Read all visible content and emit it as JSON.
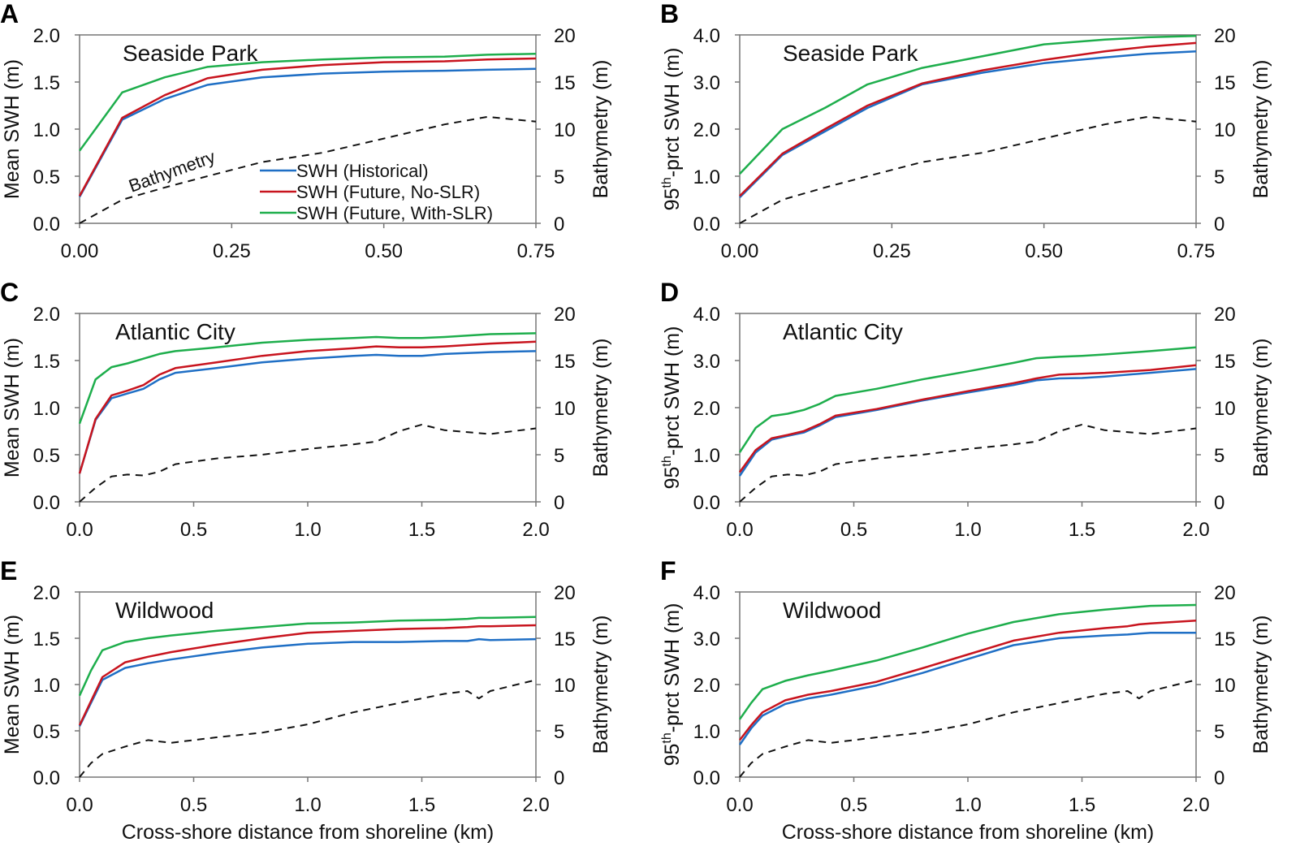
{
  "colors": {
    "historical": "#1f6fc5",
    "no_slr": "#c8141e",
    "with_slr": "#1eae4c",
    "bathymetry": "#111111"
  },
  "legend": [
    "SWH (Historical)",
    "SWH (Future, No-SLR)",
    "SWH (Future, With-SLR)"
  ],
  "bathymetry_annotation": "Bathymetry",
  "chart_data": [
    {
      "type": "line",
      "panel": "A",
      "title": "Seaside Park",
      "ylabel": {
        "main": "Mean SWH (m)"
      },
      "y2label": "Bathymetry (m)",
      "xlabel": "",
      "xlim": [
        0,
        0.75
      ],
      "ylim": [
        0,
        2.0
      ],
      "y2lim": [
        0,
        20
      ],
      "xticks": [
        "0.00",
        "0.25",
        "0.50",
        "0.75"
      ],
      "yticks": [
        "0.0",
        "0.5",
        "1.0",
        "1.5",
        "2.0"
      ],
      "y2ticks": [
        "0",
        "5",
        "10",
        "15",
        "20"
      ],
      "x": [
        0,
        0.07,
        0.14,
        0.21,
        0.3,
        0.4,
        0.5,
        0.6,
        0.67,
        0.75
      ],
      "series": [
        {
          "name": "SWH (Historical)",
          "key": "historical",
          "values": [
            0.28,
            1.1,
            1.32,
            1.47,
            1.55,
            1.59,
            1.61,
            1.62,
            1.63,
            1.64
          ]
        },
        {
          "name": "SWH (Future, No-SLR)",
          "key": "no_slr",
          "values": [
            0.29,
            1.12,
            1.36,
            1.54,
            1.63,
            1.68,
            1.71,
            1.72,
            1.74,
            1.75
          ]
        },
        {
          "name": "SWH (Future, With-SLR)",
          "key": "with_slr",
          "values": [
            0.77,
            1.39,
            1.55,
            1.66,
            1.71,
            1.74,
            1.76,
            1.77,
            1.79,
            1.8
          ]
        },
        {
          "name": "Bathymetry",
          "key": "bathymetry",
          "axis": "right",
          "values": [
            0,
            2.5,
            3.8,
            5.0,
            6.5,
            7.5,
            9.0,
            10.5,
            11.3,
            10.8
          ]
        }
      ]
    },
    {
      "type": "line",
      "panel": "B",
      "title": "Seaside Park",
      "ylabel": {
        "main": "95",
        "sup": "th",
        "rest": "-prct SWH (m)"
      },
      "y2label": "Bathymetry (m)",
      "xlabel": "",
      "xlim": [
        0,
        0.75
      ],
      "ylim": [
        0,
        4.0
      ],
      "y2lim": [
        0,
        20
      ],
      "xticks": [
        "0.00",
        "0.25",
        "0.50",
        "0.75"
      ],
      "yticks": [
        "0.0",
        "1.0",
        "2.0",
        "3.0",
        "4.0"
      ],
      "y2ticks": [
        "0",
        "5",
        "10",
        "15",
        "20"
      ],
      "x": [
        0,
        0.07,
        0.14,
        0.21,
        0.3,
        0.4,
        0.5,
        0.6,
        0.67,
        0.75
      ],
      "series": [
        {
          "name": "SWH (Historical)",
          "key": "historical",
          "values": [
            0.55,
            1.45,
            1.95,
            2.45,
            2.95,
            3.2,
            3.4,
            3.52,
            3.6,
            3.65
          ]
        },
        {
          "name": "SWH (Future, No-SLR)",
          "key": "no_slr",
          "values": [
            0.58,
            1.48,
            2.0,
            2.5,
            2.97,
            3.25,
            3.47,
            3.65,
            3.75,
            3.83
          ]
        },
        {
          "name": "SWH (Future, With-SLR)",
          "key": "with_slr",
          "values": [
            1.05,
            2.0,
            2.45,
            2.95,
            3.3,
            3.55,
            3.8,
            3.9,
            3.95,
            3.98
          ]
        },
        {
          "name": "Bathymetry",
          "key": "bathymetry",
          "axis": "right",
          "values": [
            0,
            2.5,
            3.8,
            5.0,
            6.5,
            7.5,
            9.0,
            10.5,
            11.3,
            10.8
          ]
        }
      ]
    },
    {
      "type": "line",
      "panel": "C",
      "title": "Atlantic City",
      "ylabel": {
        "main": "Mean SWH (m)"
      },
      "y2label": "Bathymetry (m)",
      "xlabel": "",
      "xlim": [
        0,
        2.0
      ],
      "ylim": [
        0,
        2.0
      ],
      "y2lim": [
        0,
        20
      ],
      "xticks": [
        "0.0",
        "0.5",
        "1.0",
        "1.5",
        "2.0"
      ],
      "yticks": [
        "0.0",
        "0.5",
        "1.0",
        "1.5",
        "2.0"
      ],
      "y2ticks": [
        "0",
        "5",
        "10",
        "15",
        "20"
      ],
      "x": [
        0,
        0.07,
        0.14,
        0.21,
        0.28,
        0.35,
        0.42,
        0.6,
        0.8,
        1.0,
        1.2,
        1.3,
        1.4,
        1.5,
        1.6,
        1.8,
        2.0
      ],
      "series": [
        {
          "name": "SWH (Historical)",
          "key": "historical",
          "values": [
            0.3,
            0.87,
            1.1,
            1.15,
            1.2,
            1.3,
            1.37,
            1.42,
            1.48,
            1.52,
            1.55,
            1.56,
            1.55,
            1.55,
            1.57,
            1.59,
            1.6
          ]
        },
        {
          "name": "SWH (Future, No-SLR)",
          "key": "no_slr",
          "values": [
            0.3,
            0.88,
            1.13,
            1.18,
            1.24,
            1.35,
            1.42,
            1.48,
            1.55,
            1.6,
            1.63,
            1.65,
            1.64,
            1.64,
            1.65,
            1.68,
            1.7
          ]
        },
        {
          "name": "SWH (Future, With-SLR)",
          "key": "with_slr",
          "values": [
            0.83,
            1.3,
            1.43,
            1.47,
            1.52,
            1.57,
            1.6,
            1.64,
            1.69,
            1.72,
            1.74,
            1.75,
            1.74,
            1.74,
            1.75,
            1.78,
            1.79
          ]
        },
        {
          "name": "Bathymetry",
          "key": "bathymetry",
          "axis": "right",
          "values": [
            0,
            1.5,
            2.7,
            2.9,
            2.8,
            3.2,
            4.0,
            4.6,
            5.0,
            5.6,
            6.1,
            6.4,
            7.5,
            8.2,
            7.6,
            7.2,
            7.8
          ]
        }
      ]
    },
    {
      "type": "line",
      "panel": "D",
      "title": "Atlantic City",
      "ylabel": {
        "main": "95",
        "sup": "th",
        "rest": "-prct SWH (m)"
      },
      "y2label": "Bathymetry (m)",
      "xlabel": "",
      "xlim": [
        0,
        2.0
      ],
      "ylim": [
        0,
        4.0
      ],
      "y2lim": [
        0,
        20
      ],
      "xticks": [
        "0.0",
        "0.5",
        "1.0",
        "1.5",
        "2.0"
      ],
      "yticks": [
        "0.0",
        "1.0",
        "2.0",
        "3.0",
        "4.0"
      ],
      "y2ticks": [
        "0",
        "5",
        "10",
        "15",
        "20"
      ],
      "x": [
        0,
        0.07,
        0.14,
        0.21,
        0.28,
        0.35,
        0.42,
        0.6,
        0.8,
        1.0,
        1.2,
        1.3,
        1.4,
        1.5,
        1.6,
        1.8,
        2.0
      ],
      "series": [
        {
          "name": "SWH (Historical)",
          "key": "historical",
          "values": [
            0.55,
            1.05,
            1.32,
            1.4,
            1.47,
            1.62,
            1.8,
            1.95,
            2.15,
            2.32,
            2.48,
            2.58,
            2.62,
            2.63,
            2.66,
            2.74,
            2.82
          ]
        },
        {
          "name": "SWH (Future, No-SLR)",
          "key": "no_slr",
          "values": [
            0.63,
            1.1,
            1.35,
            1.42,
            1.5,
            1.65,
            1.83,
            1.97,
            2.17,
            2.35,
            2.52,
            2.62,
            2.7,
            2.72,
            2.74,
            2.8,
            2.9
          ]
        },
        {
          "name": "SWH (Future, With-SLR)",
          "key": "with_slr",
          "values": [
            1.05,
            1.57,
            1.82,
            1.87,
            1.95,
            2.08,
            2.25,
            2.4,
            2.6,
            2.77,
            2.95,
            3.05,
            3.08,
            3.1,
            3.13,
            3.2,
            3.28
          ]
        },
        {
          "name": "Bathymetry",
          "key": "bathymetry",
          "axis": "right",
          "values": [
            0,
            1.5,
            2.7,
            2.9,
            2.8,
            3.2,
            4.0,
            4.6,
            5.0,
            5.6,
            6.1,
            6.4,
            7.5,
            8.2,
            7.6,
            7.2,
            7.8
          ]
        }
      ]
    },
    {
      "type": "line",
      "panel": "E",
      "title": "Wildwood",
      "ylabel": {
        "main": "Mean SWH (m)"
      },
      "y2label": "Bathymetry (m)",
      "xlabel": "Cross-shore distance from shoreline (km)",
      "xlim": [
        0,
        2.0
      ],
      "ylim": [
        0,
        2.0
      ],
      "y2lim": [
        0,
        20
      ],
      "xticks": [
        "0.0",
        "0.5",
        "1.0",
        "1.5",
        "2.0"
      ],
      "yticks": [
        "0.0",
        "0.5",
        "1.0",
        "1.5",
        "2.0"
      ],
      "y2ticks": [
        "0",
        "5",
        "10",
        "15",
        "20"
      ],
      "x": [
        0,
        0.05,
        0.1,
        0.2,
        0.3,
        0.4,
        0.6,
        0.8,
        1.0,
        1.2,
        1.4,
        1.6,
        1.7,
        1.75,
        1.8,
        2.0
      ],
      "series": [
        {
          "name": "SWH (Historical)",
          "key": "historical",
          "values": [
            0.55,
            0.8,
            1.05,
            1.18,
            1.23,
            1.27,
            1.34,
            1.4,
            1.44,
            1.46,
            1.46,
            1.47,
            1.47,
            1.49,
            1.48,
            1.49
          ]
        },
        {
          "name": "SWH (Future, No-SLR)",
          "key": "no_slr",
          "values": [
            0.56,
            0.82,
            1.08,
            1.24,
            1.3,
            1.35,
            1.43,
            1.5,
            1.56,
            1.58,
            1.6,
            1.61,
            1.62,
            1.63,
            1.63,
            1.64
          ]
        },
        {
          "name": "SWH (Future, With-SLR)",
          "key": "with_slr",
          "values": [
            0.88,
            1.15,
            1.37,
            1.46,
            1.5,
            1.53,
            1.58,
            1.62,
            1.66,
            1.67,
            1.69,
            1.7,
            1.71,
            1.72,
            1.72,
            1.73
          ]
        },
        {
          "name": "Bathymetry",
          "key": "bathymetry",
          "axis": "right",
          "values": [
            0,
            1.5,
            2.5,
            3.3,
            4.0,
            3.7,
            4.3,
            4.8,
            5.7,
            7.0,
            8.0,
            9.0,
            9.3,
            8.5,
            9.3,
            10.5
          ]
        }
      ]
    },
    {
      "type": "line",
      "panel": "F",
      "title": "Wildwood",
      "ylabel": {
        "main": "95",
        "sup": "th",
        "rest": "-prct SWH (m)"
      },
      "y2label": "Bathymetry (m)",
      "xlabel": "Cross-shore distance from shoreline (km)",
      "xlim": [
        0,
        2.0
      ],
      "ylim": [
        0,
        4.0
      ],
      "y2lim": [
        0,
        20
      ],
      "xticks": [
        "0.0",
        "0.5",
        "1.0",
        "1.5",
        "2.0"
      ],
      "yticks": [
        "0.0",
        "1.0",
        "2.0",
        "3.0",
        "4.0"
      ],
      "y2ticks": [
        "0",
        "5",
        "10",
        "15",
        "20"
      ],
      "x": [
        0,
        0.05,
        0.1,
        0.2,
        0.3,
        0.4,
        0.6,
        0.8,
        1.0,
        1.2,
        1.4,
        1.6,
        1.7,
        1.75,
        1.8,
        2.0
      ],
      "series": [
        {
          "name": "SWH (Historical)",
          "key": "historical",
          "values": [
            0.7,
            1.05,
            1.33,
            1.58,
            1.7,
            1.78,
            1.98,
            2.25,
            2.55,
            2.85,
            3.0,
            3.06,
            3.08,
            3.1,
            3.12,
            3.12
          ]
        },
        {
          "name": "SWH (Future, No-SLR)",
          "key": "no_slr",
          "values": [
            0.8,
            1.12,
            1.4,
            1.66,
            1.78,
            1.86,
            2.06,
            2.35,
            2.65,
            2.95,
            3.12,
            3.22,
            3.26,
            3.3,
            3.32,
            3.38
          ]
        },
        {
          "name": "SWH (Future, With-SLR)",
          "key": "with_slr",
          "values": [
            1.25,
            1.6,
            1.9,
            2.08,
            2.2,
            2.3,
            2.52,
            2.8,
            3.1,
            3.35,
            3.52,
            3.62,
            3.66,
            3.68,
            3.7,
            3.72
          ]
        },
        {
          "name": "Bathymetry",
          "key": "bathymetry",
          "axis": "right",
          "values": [
            0,
            1.5,
            2.5,
            3.3,
            4.0,
            3.7,
            4.3,
            4.8,
            5.7,
            7.0,
            8.0,
            9.0,
            9.3,
            8.5,
            9.3,
            10.5
          ]
        }
      ]
    }
  ]
}
